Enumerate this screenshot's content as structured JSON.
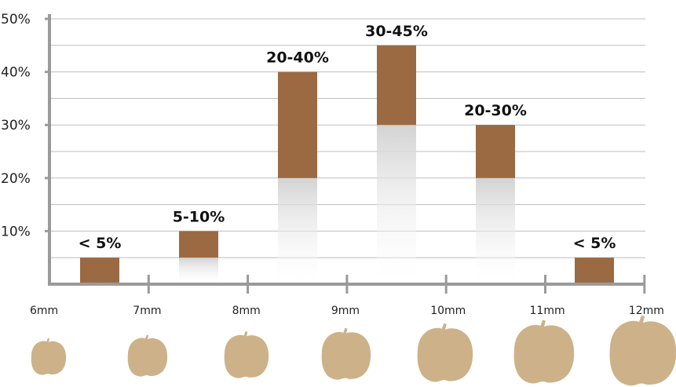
{
  "chart_data": {
    "type": "bar",
    "title": "",
    "xlabel": "",
    "ylabel": "",
    "ylim": [
      0,
      50
    ],
    "y_ticks": [
      "10%",
      "20%",
      "30%",
      "40%",
      "50%"
    ],
    "x_ticks": [
      "6mm",
      "7mm",
      "8mm",
      "9mm",
      "10mm",
      "11mm",
      "12mm"
    ],
    "grid": "horizontal",
    "bars": [
      {
        "bin": "6mm-7mm",
        "low": 0,
        "high": 5,
        "label": "< 5%"
      },
      {
        "bin": "7mm-8mm",
        "low": 5,
        "high": 10,
        "label": "5-10%"
      },
      {
        "bin": "8mm-9mm",
        "low": 20,
        "high": 40,
        "label": "20-40%"
      },
      {
        "bin": "9mm-10mm",
        "low": 30,
        "high": 45,
        "label": "30-45%"
      },
      {
        "bin": "10mm-11mm",
        "low": 20,
        "high": 30,
        "label": "20-30%"
      },
      {
        "bin": "11mm-12mm",
        "low": 0,
        "high": 10,
        "label": ""
      },
      {
        "bin": "12mm",
        "low": 0,
        "high": 5,
        "label": "< 5%"
      }
    ]
  },
  "colors": {
    "bar": "#9b6a42",
    "bean": "#cdb289",
    "axis": "#9a9a9a",
    "grid": "#bdbdbd",
    "fade": "#d6d6d6"
  },
  "icons": [
    "chickpea-6mm-icon",
    "chickpea-7mm-icon",
    "chickpea-8mm-icon",
    "chickpea-9mm-icon",
    "chickpea-10mm-icon",
    "chickpea-11mm-icon",
    "chickpea-12mm-icon"
  ]
}
